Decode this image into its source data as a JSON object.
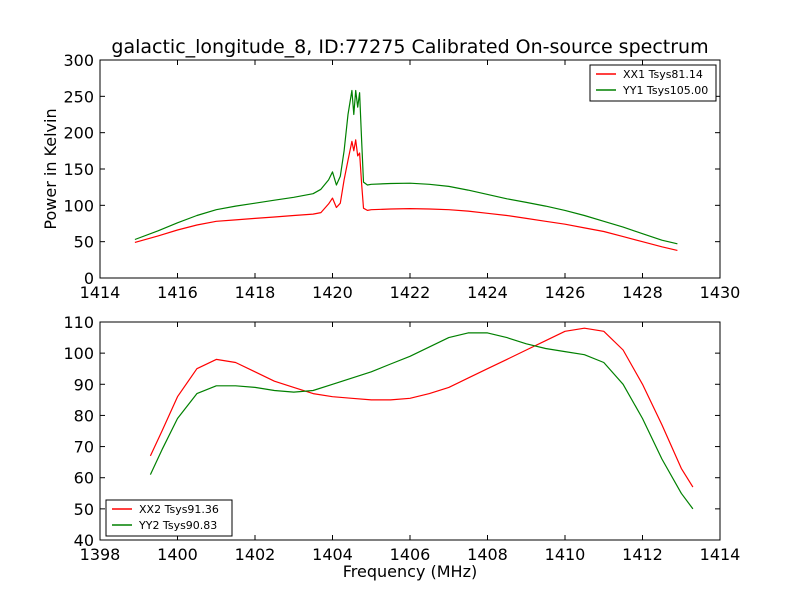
{
  "figure": {
    "title": "galactic_longitude_8, ID:77275 Calibrated On-source spectrum"
  },
  "chart_data": [
    {
      "type": "line",
      "title": "galactic_longitude_8, ID:77275 Calibrated On-source spectrum",
      "xlabel": "",
      "ylabel": "Power in Kelvin",
      "xlim": [
        1414,
        1430
      ],
      "ylim": [
        0,
        300
      ],
      "xticks": [
        1414,
        1416,
        1418,
        1420,
        1422,
        1424,
        1426,
        1428,
        1430
      ],
      "yticks": [
        0,
        50,
        100,
        150,
        200,
        250,
        300
      ],
      "grid": false,
      "legend_position": "top-right",
      "series": [
        {
          "name": "XX1 Tsys81.14",
          "color": "#ff0000",
          "x": [
            1414.9,
            1415.5,
            1416.0,
            1416.5,
            1417.0,
            1417.5,
            1418.0,
            1418.5,
            1419.0,
            1419.5,
            1419.7,
            1419.9,
            1420.0,
            1420.1,
            1420.2,
            1420.3,
            1420.4,
            1420.5,
            1420.55,
            1420.6,
            1420.65,
            1420.7,
            1420.75,
            1420.8,
            1420.9,
            1421.0,
            1421.5,
            1422.0,
            1422.5,
            1423.0,
            1423.5,
            1424.0,
            1424.5,
            1425.0,
            1425.5,
            1426.0,
            1426.5,
            1427.0,
            1427.5,
            1428.0,
            1428.5,
            1428.9
          ],
          "values": [
            49,
            58,
            66,
            73,
            78,
            80,
            82,
            84,
            86,
            88,
            90,
            102,
            110,
            97,
            103,
            135,
            162,
            188,
            175,
            190,
            168,
            172,
            130,
            96,
            93,
            94,
            95,
            95.5,
            95,
            94,
            92,
            89,
            86,
            82,
            78,
            74,
            69,
            64,
            57,
            50,
            43,
            38
          ]
        },
        {
          "name": "YY1 Tsys105.00",
          "color": "#008000",
          "x": [
            1414.9,
            1415.5,
            1416.0,
            1416.5,
            1417.0,
            1417.5,
            1418.0,
            1418.5,
            1419.0,
            1419.5,
            1419.7,
            1419.9,
            1420.0,
            1420.1,
            1420.2,
            1420.3,
            1420.4,
            1420.5,
            1420.55,
            1420.6,
            1420.65,
            1420.7,
            1420.75,
            1420.8,
            1420.9,
            1421.0,
            1421.5,
            1422.0,
            1422.5,
            1423.0,
            1423.5,
            1424.0,
            1424.5,
            1425.0,
            1425.5,
            1426.0,
            1426.5,
            1427.0,
            1427.5,
            1428.0,
            1428.5,
            1428.9
          ],
          "values": [
            53,
            65,
            76,
            86,
            94,
            99,
            103,
            107,
            111,
            116,
            122,
            135,
            146,
            128,
            140,
            175,
            225,
            258,
            225,
            258,
            235,
            255,
            190,
            132,
            128,
            129,
            130,
            130.5,
            129,
            126,
            121,
            115,
            109,
            104,
            99,
            93,
            86,
            78,
            70,
            61,
            52,
            47
          ]
        }
      ]
    },
    {
      "type": "line",
      "title": "",
      "xlabel": "Frequency (MHz)",
      "ylabel": "",
      "xlim": [
        1398,
        1414
      ],
      "ylim": [
        40,
        110
      ],
      "xticks": [
        1398,
        1400,
        1402,
        1404,
        1406,
        1408,
        1410,
        1412,
        1414
      ],
      "yticks": [
        40,
        50,
        60,
        70,
        80,
        90,
        100,
        110
      ],
      "grid": false,
      "legend_position": "bottom-left",
      "series": [
        {
          "name": "XX2 Tsys91.36",
          "color": "#ff0000",
          "x": [
            1399.3,
            1399.6,
            1400.0,
            1400.5,
            1401.0,
            1401.5,
            1402.0,
            1402.5,
            1403.0,
            1403.5,
            1404.0,
            1404.5,
            1405.0,
            1405.5,
            1406.0,
            1406.5,
            1407.0,
            1407.5,
            1408.0,
            1408.5,
            1409.0,
            1409.5,
            1410.0,
            1410.5,
            1411.0,
            1411.5,
            1412.0,
            1412.5,
            1413.0,
            1413.3
          ],
          "values": [
            67,
            75,
            86,
            95,
            98,
            97,
            94,
            91,
            89,
            87,
            86,
            85.5,
            85,
            85,
            85.5,
            87,
            89,
            92,
            95,
            98,
            101,
            104,
            107,
            108,
            107,
            101,
            90,
            77,
            63,
            57
          ]
        },
        {
          "name": "YY2 Tsys90.83",
          "color": "#008000",
          "x": [
            1399.3,
            1399.6,
            1400.0,
            1400.5,
            1401.0,
            1401.5,
            1402.0,
            1402.5,
            1403.0,
            1403.5,
            1404.0,
            1404.5,
            1405.0,
            1405.5,
            1406.0,
            1406.5,
            1407.0,
            1407.5,
            1408.0,
            1408.5,
            1409.0,
            1409.5,
            1410.0,
            1410.5,
            1411.0,
            1411.5,
            1412.0,
            1412.5,
            1413.0,
            1413.3
          ],
          "values": [
            61,
            69,
            79,
            87,
            89.5,
            89.5,
            89,
            88,
            87.5,
            88,
            90,
            92,
            94,
            96.5,
            99,
            102,
            105,
            106.5,
            106.5,
            105,
            103,
            101.5,
            100.5,
            99.5,
            97,
            90,
            79,
            66,
            55,
            50
          ]
        }
      ]
    }
  ]
}
